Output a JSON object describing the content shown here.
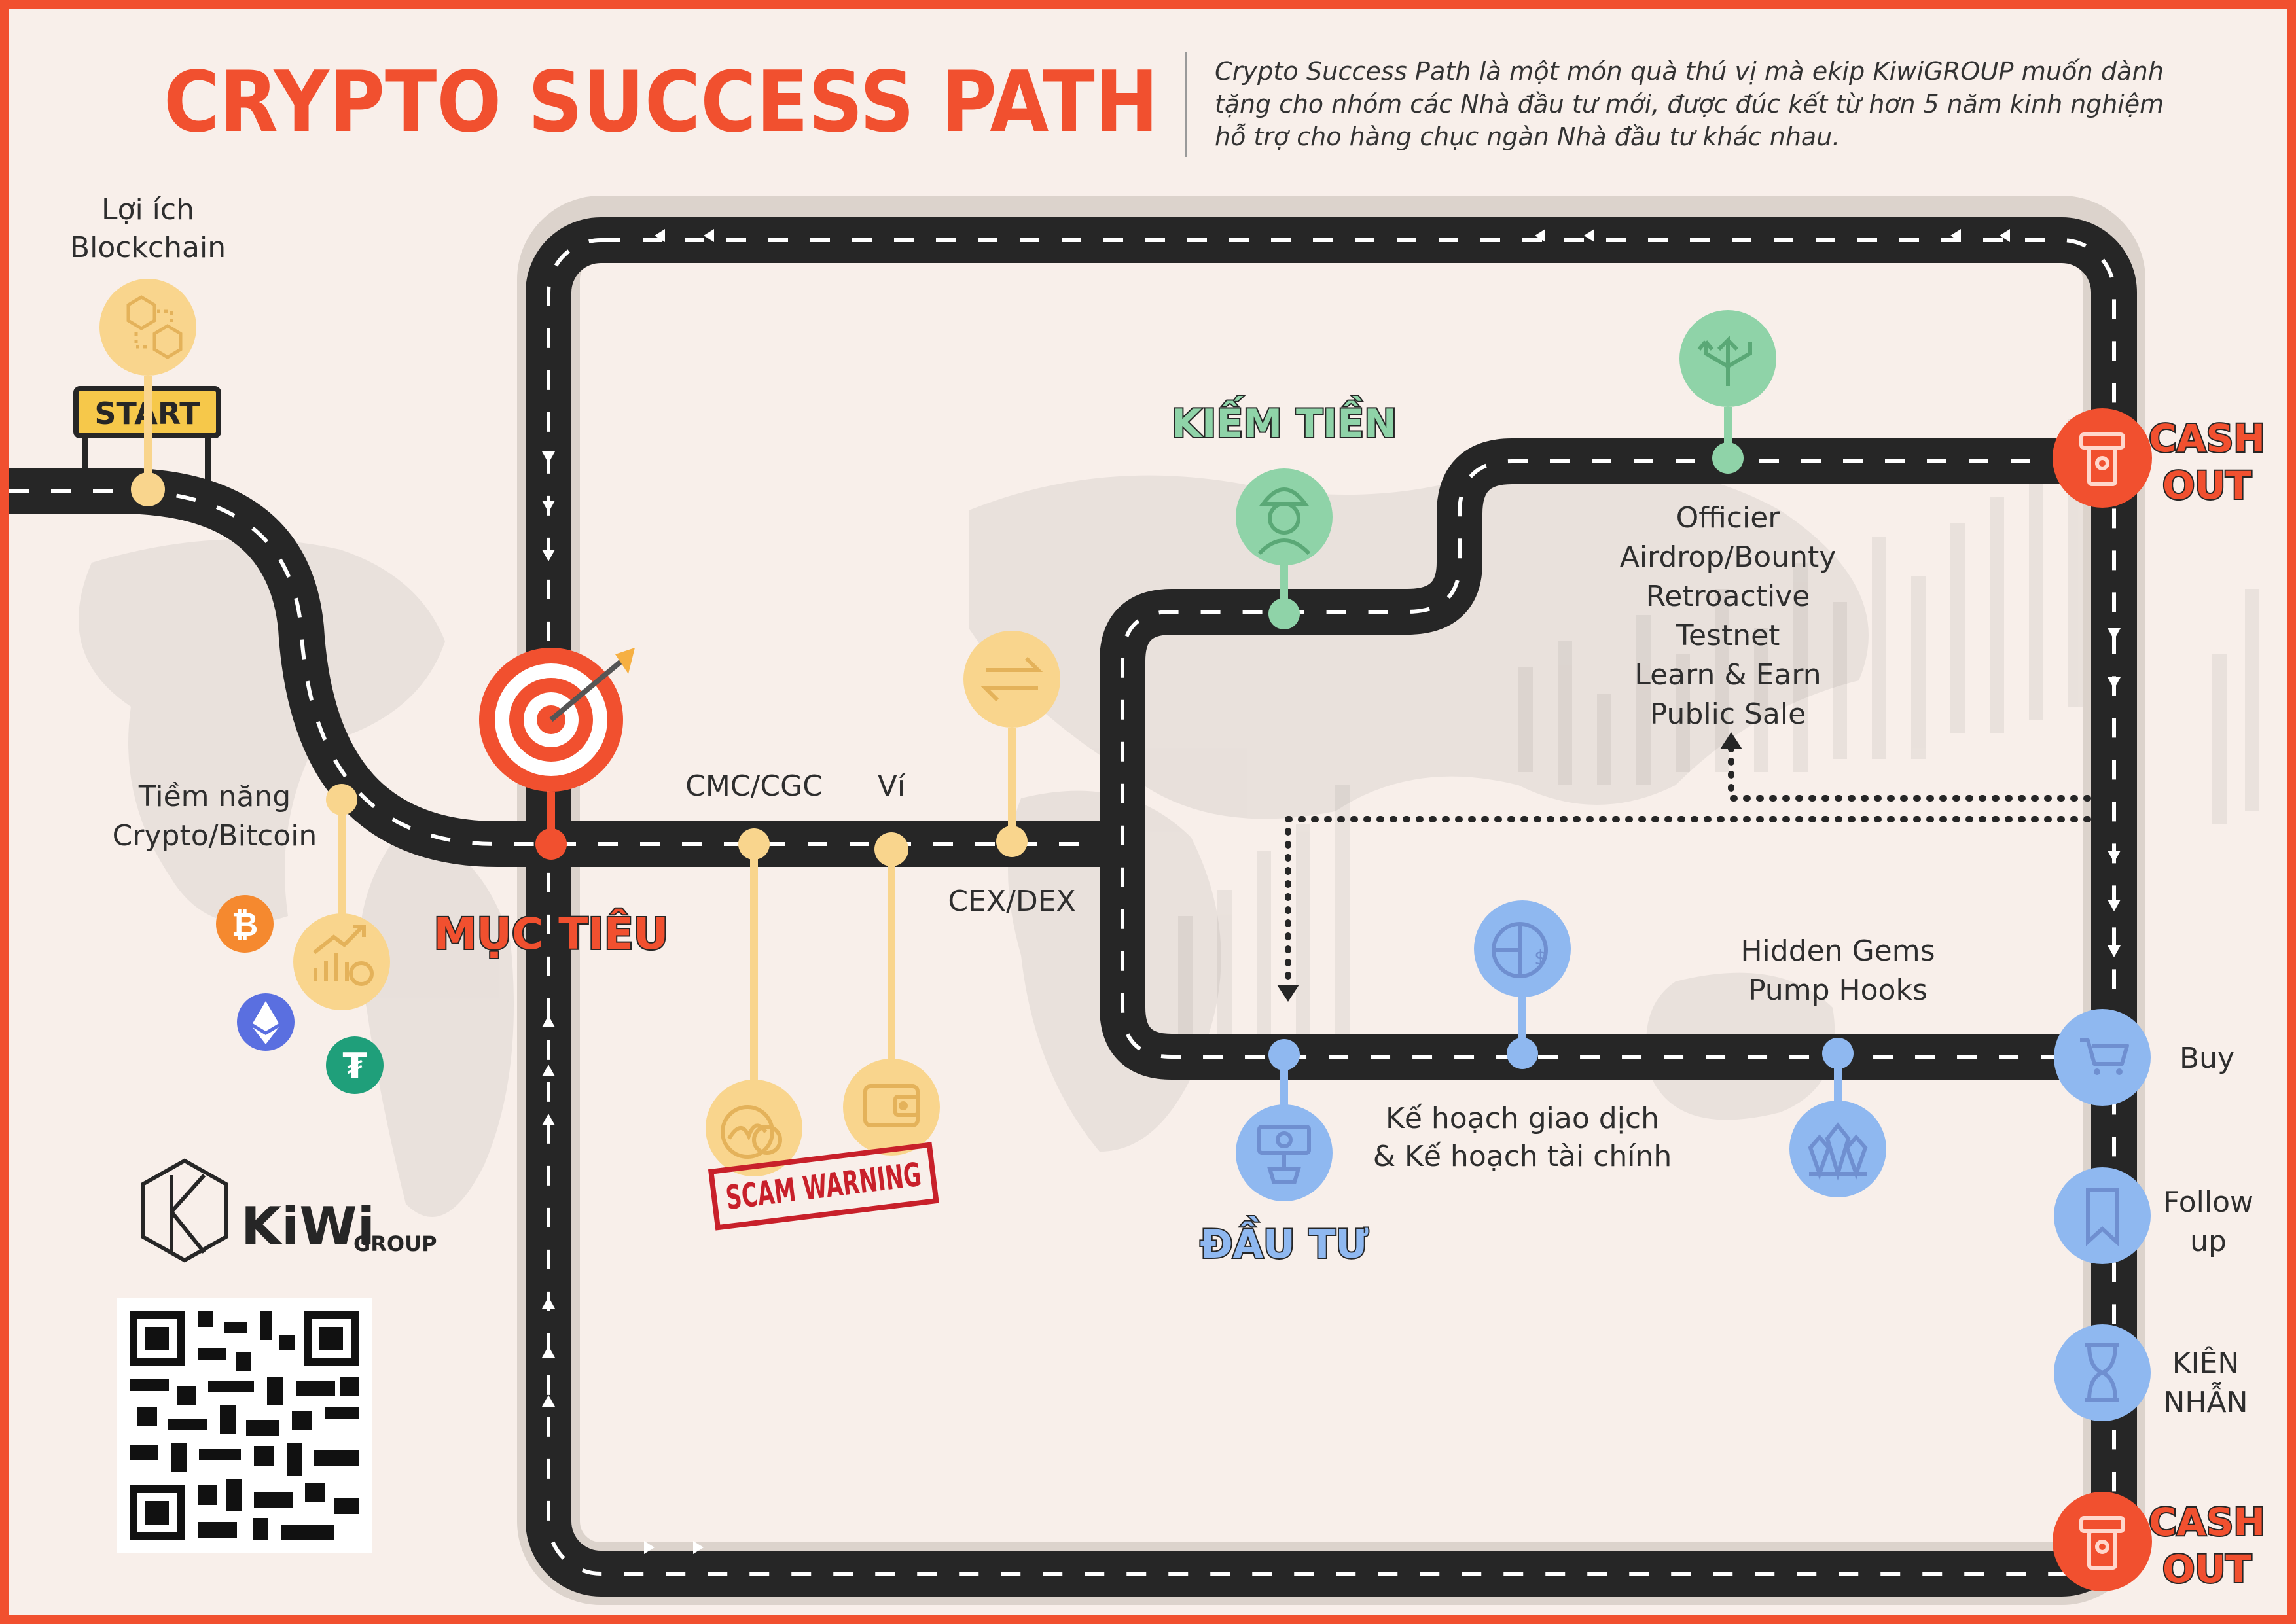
{
  "header": {
    "title": "CRYPTO SUCCESS PATH",
    "intro_lines": [
      "Crypto Success Path là một món quà thú vị mà ekip KiwiGROUP muốn dành",
      "tặng cho nhóm các Nhà đầu tư mới, được đúc kết từ hơn 5 năm kinh nghiệm",
      "hỗ trợ cho hàng chục ngàn Nhà đầu tư khác nhau."
    ]
  },
  "start": {
    "sign": "START",
    "benefit_lines": [
      "Lợi ích",
      "Blockchain"
    ],
    "potential_lines": [
      "Tiềm năng",
      "Crypto/Bitcoin"
    ]
  },
  "stages": {
    "goal": "MỤC TIÊU",
    "earn": "KIẾM TIỀN",
    "invest": "ĐẦU TƯ",
    "cashout_lines": [
      "CASH",
      "OUT"
    ]
  },
  "labels": {
    "cmc": "CMC/CGC",
    "wallet": "Ví",
    "exchange": "CEX/DEX",
    "scam": "SCAM WARNING",
    "earn_methods": [
      "Officier",
      "Airdrop/Bounty",
      "Retroactive",
      "Testnet",
      "Learn & Earn",
      "Public Sale"
    ],
    "plan_lines": [
      "Kế hoạch giao dịch",
      "& Kế hoạch tài chính"
    ],
    "gems_lines": [
      "Hidden Gems",
      "Pump Hooks"
    ],
    "buy": "Buy",
    "follow_lines": [
      "Follow",
      "up"
    ],
    "patience_lines": [
      "KIÊN",
      "NHẪN"
    ]
  },
  "brand": {
    "name": "KiWi",
    "suffix": "GROUP"
  },
  "colors": {
    "frame": "#f1502f",
    "background": "#f8efea",
    "road": "#262626",
    "yellow": "#f9d58d",
    "green": "#8fd3a8",
    "blue": "#8fb8f0",
    "red": "#f1502f",
    "title": "#f1502f"
  },
  "icons": {
    "blockchain": "cubes-icon",
    "bitcoin": "bitcoin-icon",
    "ethereum": "ethereum-icon",
    "tether": "tether-icon",
    "chart": "growth-chart-icon",
    "target": "target-icon",
    "exchange": "exchange-arrows-icon",
    "coingecko": "coingecko-icon",
    "wallet": "wallet-icon",
    "worker": "worker-icon",
    "directions": "direction-arrows-icon",
    "atm": "atm-icon",
    "pie": "pie-chart-icon",
    "money": "money-plant-icon",
    "crystal": "crystal-icon",
    "cart": "cart-icon",
    "bookmark": "bookmark-icon",
    "hourglass": "hourglass-icon"
  }
}
